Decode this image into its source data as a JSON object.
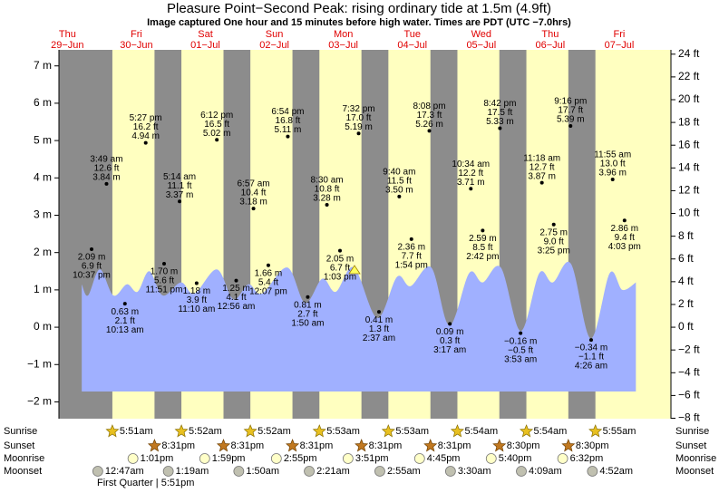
{
  "title": "Pleasure Point−Second Peak: rising  ordinary tide at 1.5m (4.9ft)",
  "subtitle": "Image captured One hour and 15 minutes before high water. Times are PDT (UTC −7.0hrs)",
  "chart_data": {
    "type": "area",
    "xlim": [
      11.26,
      224.2
    ],
    "ylim": [
      -2.45,
      7.43
    ],
    "yticks": [
      {
        "value": -2,
        "label": "−2 m"
      },
      {
        "value": -1,
        "label": "−1 m"
      },
      {
        "value": 0,
        "label": "0 m"
      },
      {
        "value": 1,
        "label": "1 m"
      },
      {
        "value": 2,
        "label": "2 m"
      },
      {
        "value": 3,
        "label": "3 m"
      },
      {
        "value": 4,
        "label": "4 m"
      },
      {
        "value": 5,
        "label": "5 m"
      },
      {
        "value": 6,
        "label": "6 m"
      },
      {
        "value": 7,
        "label": "7 m"
      }
    ],
    "y2lim": [
      -8.04,
      24.38
    ],
    "y2ticks": [
      {
        "value": -8,
        "label": "−8 ft"
      },
      {
        "value": -6,
        "label": "−6 ft"
      },
      {
        "value": -4,
        "label": "−4 ft"
      },
      {
        "value": -2,
        "label": "−2 ft"
      },
      {
        "value": 0,
        "label": "0 ft"
      },
      {
        "value": 2,
        "label": "2 ft"
      },
      {
        "value": 4,
        "label": "4 ft"
      },
      {
        "value": 6,
        "label": "6 ft"
      },
      {
        "value": 8,
        "label": "8 ft"
      },
      {
        "value": 10,
        "label": "10 ft"
      },
      {
        "value": 12,
        "label": "12 ft"
      },
      {
        "value": 14,
        "label": "14 ft"
      },
      {
        "value": 16,
        "label": "16 ft"
      },
      {
        "value": 18,
        "label": "18 ft"
      },
      {
        "value": 20,
        "label": "20 ft"
      },
      {
        "value": 22,
        "label": "22 ft"
      },
      {
        "value": 24,
        "label": "24 ft"
      }
    ],
    "curve": {
      "x": [
        19.2,
        21.4,
        25.5,
        30.2,
        34.9,
        38.6,
        42.7,
        47.4,
        53.7,
        58.4,
        66.2,
        71.9,
        77.2,
        81.9,
        90.7,
        96.9,
        102.9,
        107.6,
        113.9,
        122.0,
        128.9,
        133.6,
        140.8,
        147.1,
        154.0,
        158.7,
        165.0,
        171.9,
        178.4,
        183.1,
        189.4,
        196.3,
        202.9,
        207.3,
        212.0
      ],
      "values": [
        1.15,
        0.85,
        1.55,
        0.85,
        1.15,
        0.95,
        1.5,
        0.85,
        1.2,
        0.9,
        1.55,
        0.75,
        1.15,
        0.9,
        1.6,
        0.65,
        1.3,
        0.95,
        1.6,
        0.25,
        1.35,
        1.1,
        1.6,
        0.05,
        1.45,
        1.2,
        1.6,
        -0.1,
        1.45,
        1.2,
        1.7,
        -0.3,
        1.45,
        1.0,
        1.2
      ]
    },
    "rows": [
      "Sunrise",
      "Sunset",
      "Moonrise",
      "Moonset"
    ],
    "moon_phase": "First Quarter | 5:51pm",
    "days": [
      {
        "weekday": "Thu",
        "date": "29−Jun",
        "tides": [
          {
            "time": "10:37 pm",
            "ft_label": "6.9 ft",
            "m": 2.09,
            "m_label": "2.09 m"
          }
        ]
      },
      {
        "weekday": "Fri",
        "date": "30−Jun",
        "sunrise": "5:51am",
        "sunset": "8:31pm",
        "moonrise": "1:01pm",
        "moonset": "12:47am",
        "tides": [
          {
            "time": "3:49 am",
            "ft_label": "12.6 ft",
            "m": 3.84,
            "m_label": "3.84 m"
          },
          {
            "time": "10:13 am",
            "ft_label": "2.1 ft",
            "m": 0.63,
            "m_label": "0.63 m"
          },
          {
            "time": "5:27 pm",
            "ft_label": "16.2 ft",
            "m": 4.94,
            "m_label": "4.94 m"
          },
          {
            "time": "11:51 pm",
            "ft_label": "5.6 ft",
            "m": 1.7,
            "m_label": "1.70 m"
          }
        ]
      },
      {
        "weekday": "Sat",
        "date": "01−Jul",
        "sunrise": "5:52am",
        "sunset": "8:31pm",
        "moonrise": "1:59pm",
        "moonset": "1:19am",
        "tides": [
          {
            "time": "5:14 am",
            "ft_label": "11.1 ft",
            "m": 3.37,
            "m_label": "3.37 m"
          },
          {
            "time": "11:10 am",
            "ft_label": "3.9 ft",
            "m": 1.18,
            "m_label": "1.18 m"
          },
          {
            "time": "6:12 pm",
            "ft_label": "16.5 ft",
            "m": 5.02,
            "m_label": "5.02 m"
          }
        ]
      },
      {
        "weekday": "Sun",
        "date": "02−Jul",
        "sunrise": "5:52am",
        "sunset": "8:31pm",
        "moonrise": "2:55pm",
        "moonset": "1:50am",
        "tides": [
          {
            "time": "12:56 am",
            "ft_label": "4.1 ft",
            "m": 1.25,
            "m_label": "1.25 m"
          },
          {
            "time": "6:57 am",
            "ft_label": "10.4 ft",
            "m": 3.18,
            "m_label": "3.18 m"
          },
          {
            "time": "12:07 pm",
            "ft_label": "5.4 ft",
            "m": 1.66,
            "m_label": "1.66 m"
          },
          {
            "time": "6:54 pm",
            "ft_label": "16.8 ft",
            "m": 5.11,
            "m_label": "5.11 m"
          }
        ]
      },
      {
        "weekday": "Mon",
        "date": "03−Jul",
        "sunrise": "5:53am",
        "sunset": "8:31pm",
        "moonrise": "3:51pm",
        "moonset": "2:21am",
        "tides": [
          {
            "time": "1:50 am",
            "ft_label": "2.7 ft",
            "m": 0.81,
            "m_label": "0.81 m"
          },
          {
            "time": "8:30 am",
            "ft_label": "10.8 ft",
            "m": 3.28,
            "m_label": "3.28 m"
          },
          {
            "time": "1:03 pm",
            "ft_label": "6.7 ft",
            "m": 2.05,
            "m_label": "2.05 m"
          },
          {
            "time": "7:32 pm",
            "ft_label": "17.0 ft",
            "m": 5.19,
            "m_label": "5.19 m"
          }
        ]
      },
      {
        "weekday": "Tue",
        "date": "04−Jul",
        "sunrise": "5:53am",
        "sunset": "8:31pm",
        "moonrise": "4:45pm",
        "moonset": "2:55am",
        "tides": [
          {
            "time": "2:37 am",
            "ft_label": "1.3 ft",
            "m": 0.41,
            "m_label": "0.41 m"
          },
          {
            "time": "9:40 am",
            "ft_label": "11.5 ft",
            "m": 3.5,
            "m_label": "3.50 m"
          },
          {
            "time": "1:54 pm",
            "ft_label": "7.7 ft",
            "m": 2.36,
            "m_label": "2.36 m"
          },
          {
            "time": "8:08 pm",
            "ft_label": "17.3 ft",
            "m": 5.26,
            "m_label": "5.26 m"
          }
        ]
      },
      {
        "weekday": "Wed",
        "date": "05−Jul",
        "sunrise": "5:54am",
        "sunset": "8:30pm",
        "moonrise": "5:40pm",
        "moonset": "3:30am",
        "tides": [
          {
            "time": "3:17 am",
            "ft_label": "0.3 ft",
            "m": 0.09,
            "m_label": "0.09 m"
          },
          {
            "time": "10:34 am",
            "ft_label": "12.2 ft",
            "m": 3.71,
            "m_label": "3.71 m"
          },
          {
            "time": "2:42 pm",
            "ft_label": "8.5 ft",
            "m": 2.59,
            "m_label": "2.59 m"
          },
          {
            "time": "8:42 pm",
            "ft_label": "17.5 ft",
            "m": 5.33,
            "m_label": "5.33 m"
          }
        ]
      },
      {
        "weekday": "Thu",
        "date": "06−Jul",
        "sunrise": "5:54am",
        "sunset": "8:30pm",
        "moonrise": "6:32pm",
        "moonset": "4:09am",
        "tides": [
          {
            "time": "3:53 am",
            "ft_label": "−0.5 ft",
            "m": -0.16,
            "m_label": "−0.16 m"
          },
          {
            "time": "11:18 am",
            "ft_label": "12.7 ft",
            "m": 3.87,
            "m_label": "3.87 m"
          },
          {
            "time": "3:25 pm",
            "ft_label": "9.0 ft",
            "m": 2.75,
            "m_label": "2.75 m"
          },
          {
            "time": "9:16 pm",
            "ft_label": "17.7 ft",
            "m": 5.39,
            "m_label": "5.39 m"
          }
        ]
      },
      {
        "weekday": "Fri",
        "date": "07−Jul",
        "sunrise": "5:55am",
        "moonset": "4:52am",
        "tides": [
          {
            "time": "4:26 am",
            "ft_label": "−1.1 ft",
            "m": -0.34,
            "m_label": "−0.34 m"
          },
          {
            "time": "11:55 am",
            "ft_label": "13.0 ft",
            "m": 3.96,
            "m_label": "3.96 m"
          },
          {
            "time": "4:03 pm",
            "ft_label": "9.4 ft",
            "m": 2.86,
            "m_label": "2.86 m"
          }
        ]
      }
    ]
  }
}
